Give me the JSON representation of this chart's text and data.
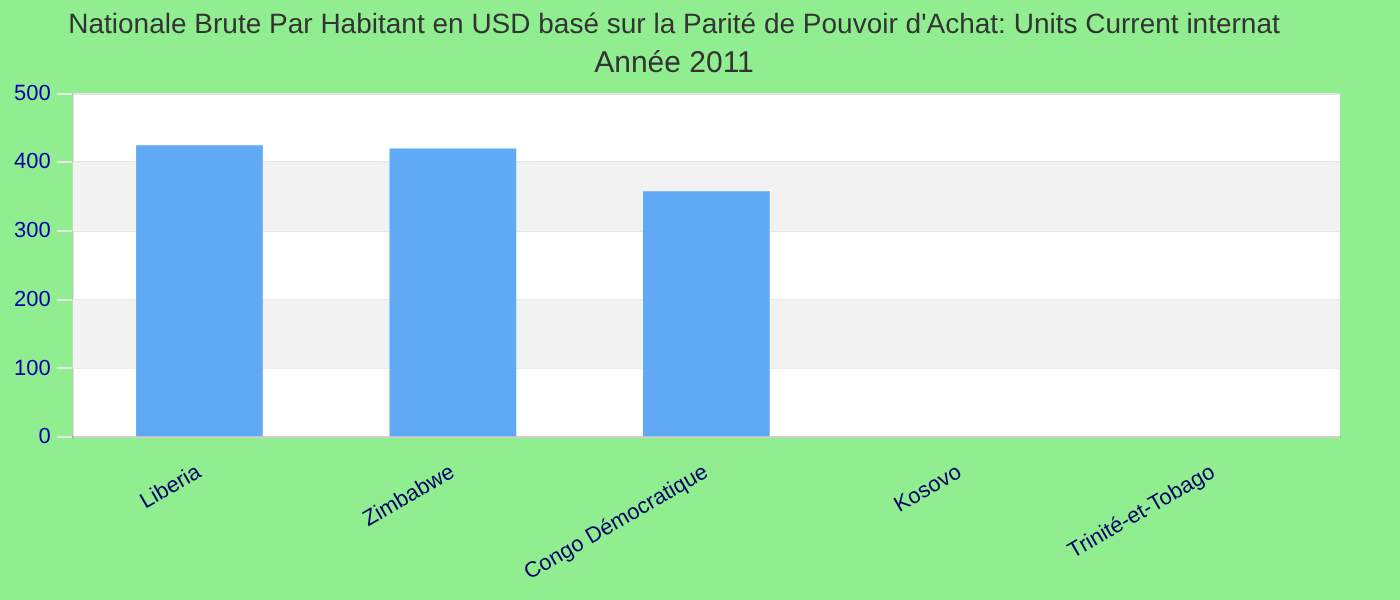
{
  "chart_data": {
    "type": "bar",
    "title": "Nationale Brute Par Habitant en USD basé sur la Parité de Pouvoir d'Achat: Units Current internat",
    "subtitle": "Année 2011",
    "categories": [
      "Liberia",
      "Zimbabwe",
      "Congo Démocratique",
      "Kosovo",
      "Trinité-et-Tobago"
    ],
    "values": [
      425,
      420,
      358,
      null,
      null
    ],
    "color": "#60aaf5",
    "ylim": [
      0,
      500
    ],
    "yticks": [
      0,
      100,
      200,
      300,
      400,
      500
    ],
    "grid": "y"
  }
}
